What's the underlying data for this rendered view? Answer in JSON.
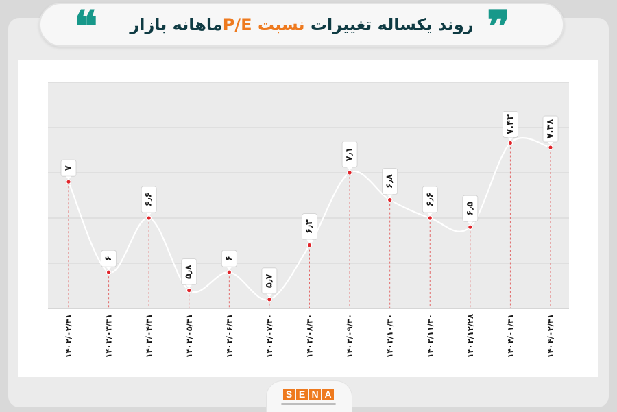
{
  "title": {
    "prefix": "روند یکساله تغییرات ",
    "accent": "نسبت P/E",
    "suffix": "ماهانه بازار",
    "quote_left": "❝",
    "quote_right": "❞"
  },
  "logo": {
    "letters": [
      "S",
      "E",
      "N",
      "A"
    ]
  },
  "colors": {
    "title": "#0f3b43",
    "accent": "#ee7a1f",
    "quotes": "#17988a",
    "line": "#ffffff",
    "dot": "#e0242a",
    "dropline": "#e26a6a",
    "grid": "#d3d3d3",
    "plot_bg": "#ebebeb"
  },
  "chart_data": {
    "type": "line",
    "categories": [
      "۱۴۰۳/۰۲/۳۱",
      "۱۴۰۳/۰۳/۳۱",
      "۱۴۰۳/۰۴/۳۱",
      "۱۴۰۳/۰۵/۳۱",
      "۱۴۰۳/۰۶/۳۱",
      "۱۴۰۳/۰۷/۳۰",
      "۱۴۰۳/۰۸/۳۰",
      "۱۴۰۳/۰۹/۳۰",
      "۱۴۰۳/۱۰/۳۰",
      "۱۴۰۳/۱۱/۳۰",
      "۱۴۰۳/۱۲/۲۸",
      "۱۴۰۴/۰۱/۳۱",
      "۱۴۰۴/۰۲/۳۱"
    ],
    "values": [
      7,
      6,
      6.6,
      5.8,
      6,
      5.7,
      6.3,
      7.1,
      6.8,
      6.6,
      6.5,
      7.43,
      7.38
    ],
    "value_labels": [
      "۷",
      "۶",
      "۶٫۶",
      "۵٫۸",
      "۶",
      "۵٫۷",
      "۶٫۳",
      "۷٫۱",
      "۶٫۸",
      "۶٫۶",
      "۶٫۵",
      "۷.۴۳",
      "۷.۳۸"
    ],
    "title": "روند یکساله تغییرات نسبت P/E ماهانه بازار",
    "xlabel": "",
    "ylabel": "",
    "ylim": [
      5.6,
      8.1
    ],
    "grid": true,
    "legend": "none"
  }
}
